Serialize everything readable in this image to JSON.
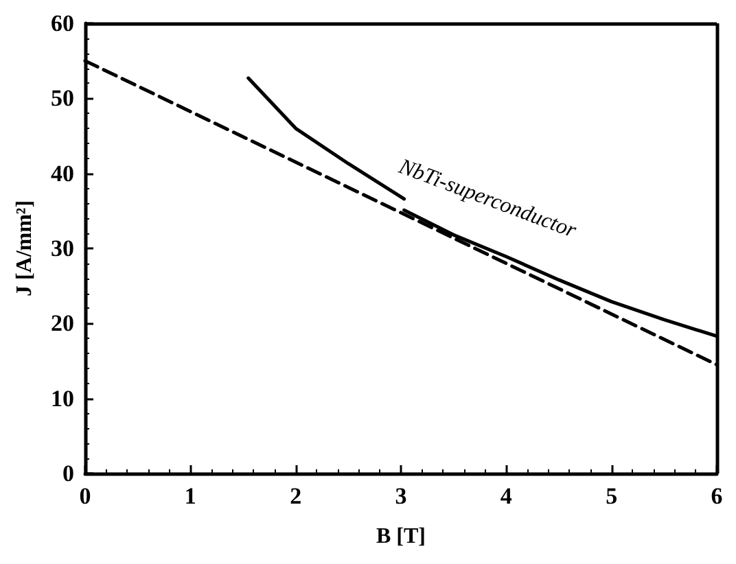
{
  "chart_data": {
    "type": "line",
    "xlabel": "B [T]",
    "ylabel": "J [A/mm²]",
    "xlim": [
      0,
      6
    ],
    "ylim": [
      0,
      60
    ],
    "xticks": [
      0,
      1,
      2,
      3,
      4,
      5,
      6
    ],
    "yticks": [
      0,
      10,
      20,
      30,
      40,
      50,
      60
    ],
    "grid": false,
    "marker": "none",
    "series": [
      {
        "color": "#000000",
        "line_style": "solid",
        "x": [
          1.55,
          2.0,
          2.5,
          3.03
        ],
        "values": [
          52.7,
          46,
          41.3,
          36.6
        ]
      },
      {
        "color": "#000000",
        "line_style": "solid",
        "x": [
          3.03,
          3.5,
          4,
          4.5,
          5,
          5.5,
          6
        ],
        "values": [
          35.1,
          31.8,
          28.9,
          25.8,
          22.9,
          20.5,
          18.3
        ]
      },
      {
        "color": "#000000",
        "line_style": "dashed",
        "x": [
          0,
          6
        ],
        "values": [
          55,
          14.5
        ]
      }
    ],
    "annotations": [
      "NbTi-superconductor"
    ]
  }
}
